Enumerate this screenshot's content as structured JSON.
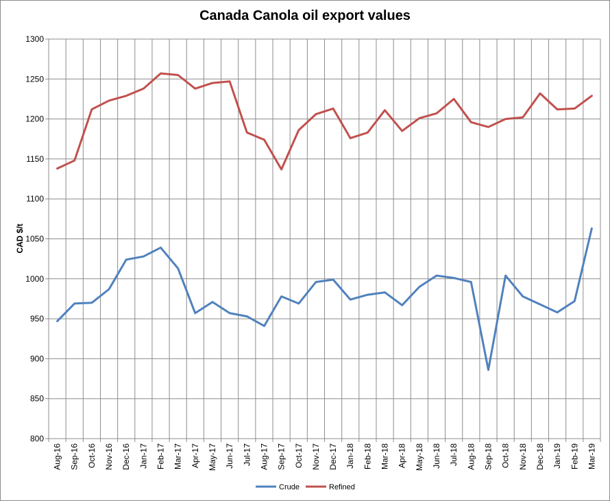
{
  "chart_data": {
    "type": "line",
    "title": "Canada Canola oil export values",
    "xlabel": "",
    "ylabel": "CAD $/t",
    "ylim": [
      800,
      1300
    ],
    "ytick_step": 50,
    "grid": true,
    "legend": "bottom-center",
    "categories": [
      "Aug-16",
      "Sep-16",
      "Oct-16",
      "Nov-16",
      "Dec-16",
      "Jan-17",
      "Feb-17",
      "Mar-17",
      "Apr-17",
      "May-17",
      "Jun-17",
      "Jul-17",
      "Aug-17",
      "Sep-17",
      "Oct-17",
      "Nov-17",
      "Dec-17",
      "Jan-18",
      "Feb-18",
      "Mar-18",
      "Apr-18",
      "May-18",
      "Jun-18",
      "Jul-18",
      "Aug-18",
      "Sep-18",
      "Oct-18",
      "Nov-18",
      "Dec-18",
      "Jan-19",
      "Feb-19",
      "Mar-19"
    ],
    "series": [
      {
        "name": "Crude",
        "color": "#4f81bd",
        "values": [
          947,
          969,
          970,
          987,
          1024,
          1028,
          1039,
          1013,
          957,
          971,
          957,
          953,
          941,
          978,
          969,
          996,
          999,
          974,
          980,
          983,
          967,
          990,
          1004,
          1001,
          996,
          886,
          1004,
          978,
          968,
          958,
          972,
          1063
        ]
      },
      {
        "name": "Refined",
        "color": "#c0504d",
        "values": [
          1138,
          1148,
          1212,
          1223,
          1229,
          1238,
          1257,
          1255,
          1238,
          1245,
          1247,
          1183,
          1174,
          1137,
          1186,
          1206,
          1213,
          1176,
          1183,
          1211,
          1185,
          1201,
          1207,
          1225,
          1196,
          1190,
          1200,
          1202,
          1232,
          1212,
          1213,
          1229
        ]
      }
    ]
  }
}
